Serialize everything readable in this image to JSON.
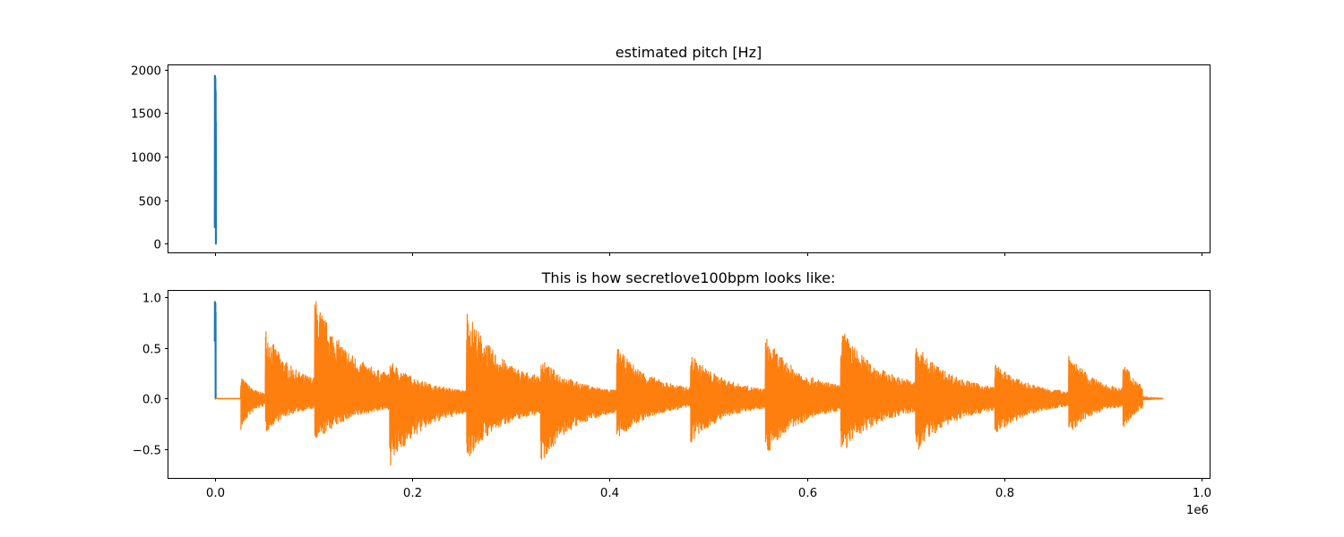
{
  "chart_data": [
    {
      "type": "line",
      "title": "estimated pitch [Hz]",
      "xlim": [
        -47000,
        1008000
      ],
      "ylim": [
        -100,
        2050
      ],
      "yticks": [
        0,
        500,
        1000,
        1500,
        2000
      ],
      "ytick_labels": [
        "0",
        "500",
        "1000",
        "1500",
        "2000"
      ],
      "xticks": [
        0,
        200000,
        400000,
        600000,
        800000,
        1000000
      ],
      "show_x_tick_labels": false,
      "grid": false,
      "series": [
        {
          "color": "#1f77b4",
          "x": [
            0,
            100,
            200,
            300,
            400,
            500,
            600,
            700,
            800,
            900,
            1000,
            1100,
            1200
          ],
          "y": [
            180,
            1930,
            950,
            1600,
            420,
            1900,
            300,
            1200,
            1750,
            600,
            1400,
            0,
            850
          ]
        }
      ]
    },
    {
      "type": "line",
      "title": "This is how secretlove100bpm looks like:",
      "xlim": [
        -47000,
        1008000
      ],
      "ylim": [
        -0.78,
        1.06
      ],
      "yticks": [
        -0.5,
        0.0,
        0.5,
        1.0
      ],
      "ytick_labels": [
        "−0.5",
        "0.0",
        "0.5",
        "1.0"
      ],
      "xticks": [
        0,
        200000,
        400000,
        600000,
        800000,
        1000000
      ],
      "xtick_labels": [
        "0.0",
        "0.2",
        "0.4",
        "0.6",
        "0.8",
        "1.0"
      ],
      "x_offset_label": "1e6",
      "grid": false,
      "series": [
        {
          "color": "#1f77b4",
          "x": [
            0,
            100,
            200,
            300,
            400,
            500,
            600,
            700,
            800,
            900,
            1000
          ],
          "y": [
            0.56,
            0.95,
            0.7,
            0.9,
            0.6,
            0.94,
            0.58,
            0.85,
            0.0,
            0.0,
            0.0
          ]
        },
        {
          "color": "#ff7f0e",
          "x": [
            1000,
            26000,
            51000,
            101000,
            177000,
            255000,
            330000,
            407000,
            482000,
            558000,
            634000,
            710000,
            790000,
            865000,
            920000,
            960000
          ],
          "y": [
            0.0,
            0.25,
            0.72,
            1.02,
            0.38,
            0.9,
            0.4,
            0.52,
            0.45,
            0.62,
            0.72,
            0.55,
            0.35,
            0.47,
            0.4,
            0.01
          ],
          "envelope": {
            "onsets": [
              {
                "x": 26000,
                "peak": 0.25,
                "trough": -0.33,
                "decay_to": 0.12
              },
              {
                "x": 51000,
                "peak": 0.72,
                "trough": -0.35,
                "decay_to": 0.2
              },
              {
                "x": 101000,
                "peak": 1.02,
                "trough": -0.45,
                "decay_to": 0.15
              },
              {
                "x": 177000,
                "peak": 0.38,
                "trough": -0.68,
                "decay_to": 0.12
              },
              {
                "x": 255000,
                "peak": 0.9,
                "trough": -0.62,
                "decay_to": 0.15
              },
              {
                "x": 330000,
                "peak": 0.4,
                "trough": -0.65,
                "decay_to": 0.12
              },
              {
                "x": 407000,
                "peak": 0.52,
                "trough": -0.42,
                "decay_to": 0.12
              },
              {
                "x": 482000,
                "peak": 0.45,
                "trough": -0.45,
                "decay_to": 0.12
              },
              {
                "x": 558000,
                "peak": 0.62,
                "trough": -0.57,
                "decay_to": 0.12
              },
              {
                "x": 634000,
                "peak": 0.72,
                "trough": -0.57,
                "decay_to": 0.15
              },
              {
                "x": 710000,
                "peak": 0.55,
                "trough": -0.55,
                "decay_to": 0.12
              },
              {
                "x": 790000,
                "peak": 0.35,
                "trough": -0.37,
                "decay_to": 0.12
              },
              {
                "x": 865000,
                "peak": 0.47,
                "trough": -0.37,
                "decay_to": 0.12
              },
              {
                "x": 920000,
                "peak": 0.4,
                "trough": -0.3,
                "decay_to": 0.01
              }
            ],
            "end_x": 960000
          }
        }
      ]
    }
  ]
}
